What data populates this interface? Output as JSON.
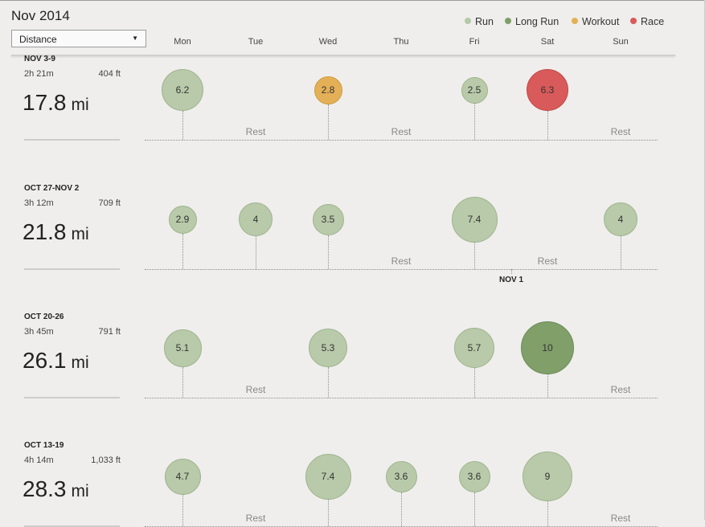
{
  "header": {
    "month_title": "Nov 2014",
    "metric_select": {
      "value": "Distance"
    }
  },
  "legend": [
    {
      "label": "Run",
      "color": "#b5c9a6"
    },
    {
      "label": "Long Run",
      "color": "#7e9f68"
    },
    {
      "label": "Workout",
      "color": "#e5b156"
    },
    {
      "label": "Race",
      "color": "#d95a5a"
    }
  ],
  "days": [
    "Mon",
    "Tue",
    "Wed",
    "Thu",
    "Fri",
    "Sat",
    "Sun"
  ],
  "rest_label": "Rest",
  "run_colors": {
    "run": {
      "fill": "#b8caa9",
      "stroke": "#9fb48e"
    },
    "long": {
      "fill": "#809f69",
      "stroke": "#6d8c58"
    },
    "workout": {
      "fill": "#e4b057",
      "stroke": "#cf9a40"
    },
    "race": {
      "fill": "#d95a5a",
      "stroke": "#c24848"
    }
  },
  "month_marker": {
    "label": "NOV 1"
  },
  "weeks": [
    {
      "range": "NOV 3-9",
      "time": "2h 21m",
      "elevation": "404 ft",
      "distance": "17.8",
      "unit": "mi",
      "runs": [
        {
          "day": 0,
          "miles": 6.2,
          "label": "6.2",
          "type": "run"
        },
        {
          "day": 2,
          "miles": 2.8,
          "label": "2.8",
          "type": "workout"
        },
        {
          "day": 4,
          "miles": 2.5,
          "label": "2.5",
          "type": "run"
        },
        {
          "day": 5,
          "miles": 6.3,
          "label": "6.3",
          "type": "race"
        }
      ],
      "rest_days": [
        1,
        3,
        6
      ]
    },
    {
      "range": "OCT 27-NOV 2",
      "time": "3h 12m",
      "elevation": "709 ft",
      "distance": "21.8",
      "unit": "mi",
      "runs": [
        {
          "day": 0,
          "miles": 2.9,
          "label": "2.9",
          "type": "run"
        },
        {
          "day": 1,
          "miles": 4,
          "label": "4",
          "type": "run"
        },
        {
          "day": 2,
          "miles": 3.5,
          "label": "3.5",
          "type": "run"
        },
        {
          "day": 4,
          "miles": 7.4,
          "label": "7.4",
          "type": "run"
        },
        {
          "day": 6,
          "miles": 4,
          "label": "4",
          "type": "run"
        }
      ],
      "rest_days": [
        3,
        5
      ]
    },
    {
      "range": "OCT 20-26",
      "time": "3h 45m",
      "elevation": "791 ft",
      "distance": "26.1",
      "unit": "mi",
      "runs": [
        {
          "day": 0,
          "miles": 5.1,
          "label": "5.1",
          "type": "run"
        },
        {
          "day": 2,
          "miles": 5.3,
          "label": "5.3",
          "type": "run"
        },
        {
          "day": 4,
          "miles": 5.7,
          "label": "5.7",
          "type": "run"
        },
        {
          "day": 5,
          "miles": 10,
          "label": "10",
          "type": "long"
        }
      ],
      "rest_days": [
        1,
        6
      ]
    },
    {
      "range": "OCT 13-19",
      "time": "4h 14m",
      "elevation": "1,033 ft",
      "distance": "28.3",
      "unit": "mi",
      "runs": [
        {
          "day": 0,
          "miles": 4.7,
          "label": "4.7",
          "type": "run"
        },
        {
          "day": 2,
          "miles": 7.4,
          "label": "7.4",
          "type": "run"
        },
        {
          "day": 3,
          "miles": 3.6,
          "label": "3.6",
          "type": "run"
        },
        {
          "day": 4,
          "miles": 3.6,
          "label": "3.6",
          "type": "run"
        },
        {
          "day": 5,
          "miles": 9,
          "label": "9",
          "type": "run"
        }
      ],
      "rest_days": [
        1,
        6
      ]
    }
  ]
}
